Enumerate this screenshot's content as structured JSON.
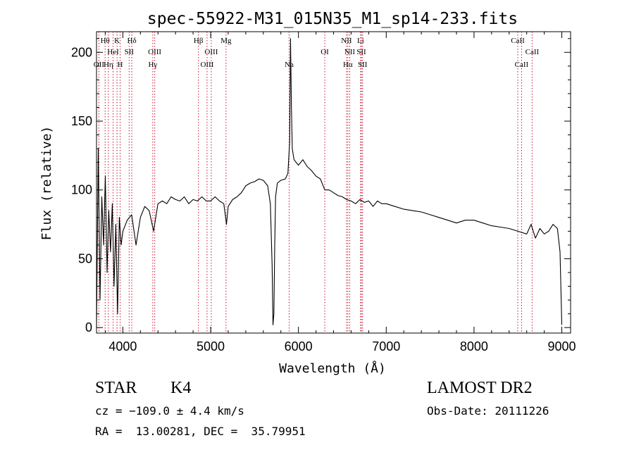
{
  "chart_data": {
    "type": "line",
    "title": "spec-55922-M31_015N35_M1_sp14-233.fits",
    "xlabel": "Wavelength (Å)",
    "ylabel": "Flux (relative)",
    "xlim": [
      3700,
      9100
    ],
    "ylim": [
      -4,
      215
    ],
    "xticks": [
      4000,
      5000,
      6000,
      7000,
      8000,
      9000
    ],
    "yticks": [
      0,
      50,
      100,
      150,
      200
    ],
    "grid": false,
    "series": [
      {
        "x": [
          3700,
          3720,
          3740,
          3760,
          3780,
          3800,
          3820,
          3840,
          3860,
          3880,
          3900,
          3920,
          3940,
          3960,
          3980,
          4000,
          4050,
          4100,
          4150,
          4200,
          4250,
          4300,
          4350,
          4400,
          4450,
          4500,
          4550,
          4600,
          4650,
          4700,
          4750,
          4800,
          4850,
          4900,
          4950,
          5000,
          5050,
          5100,
          5150,
          5180,
          5200,
          5250,
          5300,
          5350,
          5400,
          5450,
          5500,
          5550,
          5600,
          5650,
          5680,
          5700,
          5710,
          5720,
          5730,
          5740,
          5760,
          5800,
          5850,
          5880,
          5900,
          5910,
          5920,
          5930,
          5950,
          6000,
          6050,
          6100,
          6150,
          6200,
          6250,
          6300,
          6350,
          6400,
          6450,
          6500,
          6550,
          6600,
          6650,
          6700,
          6750,
          6800,
          6850,
          6900,
          6950,
          7000,
          7100,
          7200,
          7300,
          7400,
          7500,
          7600,
          7700,
          7800,
          7900,
          8000,
          8100,
          8200,
          8300,
          8400,
          8500,
          8600,
          8650,
          8700,
          8750,
          8800,
          8850,
          8900,
          8950,
          8980,
          9000
        ],
        "y": [
          0,
          130,
          20,
          95,
          60,
          110,
          40,
          85,
          55,
          90,
          30,
          75,
          10,
          80,
          60,
          70,
          78,
          82,
          60,
          80,
          88,
          85,
          70,
          90,
          92,
          90,
          95,
          93,
          92,
          95,
          90,
          93,
          92,
          95,
          92,
          92,
          95,
          92,
          90,
          75,
          88,
          93,
          95,
          98,
          103,
          105,
          106,
          108,
          107,
          103,
          90,
          45,
          2,
          10,
          60,
          95,
          105,
          107,
          108,
          112,
          135,
          210,
          160,
          130,
          122,
          118,
          122,
          117,
          114,
          110,
          108,
          100,
          100,
          98,
          96,
          95,
          93,
          92,
          90,
          93,
          91,
          92,
          88,
          92,
          90,
          90,
          88,
          86,
          85,
          84,
          82,
          80,
          78,
          76,
          78,
          78,
          76,
          74,
          73,
          72,
          70,
          68,
          75,
          65,
          72,
          68,
          70,
          75,
          72,
          55,
          2
        ]
      }
    ],
    "lines": [
      {
        "label": "Hθ",
        "x": 3798,
        "row": 1
      },
      {
        "label": "OII",
        "x": 3727,
        "row": 3
      },
      {
        "label": "Hη",
        "x": 3835,
        "row": 3
      },
      {
        "label": "HeI",
        "x": 3889,
        "row": 2
      },
      {
        "label": "K",
        "x": 3934,
        "row": 1
      },
      {
        "label": "H",
        "x": 3969,
        "row": 3
      },
      {
        "label": "SII",
        "x": 4072,
        "row": 2
      },
      {
        "label": "Hδ",
        "x": 4102,
        "row": 1
      },
      {
        "label": "Hγ",
        "x": 4341,
        "row": 3
      },
      {
        "label": "OIII",
        "x": 4363,
        "row": 2
      },
      {
        "label": "Hβ",
        "x": 4861,
        "row": 1
      },
      {
        "label": "OIII",
        "x": 4959,
        "row": 3
      },
      {
        "label": "OIII",
        "x": 5007,
        "row": 2
      },
      {
        "label": "Mg",
        "x": 5175,
        "row": 1
      },
      {
        "label": "Na",
        "x": 5894,
        "row": 3
      },
      {
        "label": "OI",
        "x": 6300,
        "row": 2
      },
      {
        "label": "Hα",
        "x": 6563,
        "row": 3
      },
      {
        "label": "NII",
        "x": 6548,
        "row": 1
      },
      {
        "label": "NII",
        "x": 6584,
        "row": 2
      },
      {
        "label": "Li",
        "x": 6708,
        "row": 1
      },
      {
        "label": "SII",
        "x": 6717,
        "row": 2
      },
      {
        "label": "SII",
        "x": 6731,
        "row": 3
      },
      {
        "label": "CaII",
        "x": 8498,
        "row": 1
      },
      {
        "label": "CaII",
        "x": 8542,
        "row": 3
      },
      {
        "label": "CaII",
        "x": 8662,
        "row": 2
      }
    ]
  },
  "info": {
    "class_label": "STAR",
    "subclass": "K4",
    "survey": "LAMOST DR2",
    "cz_text": "cz = −109.0 ± 4.4 km/s",
    "obsdate_text": "Obs-Date: 20111226",
    "radec_text": "RA =  13.00281, DEC =  35.79951"
  }
}
